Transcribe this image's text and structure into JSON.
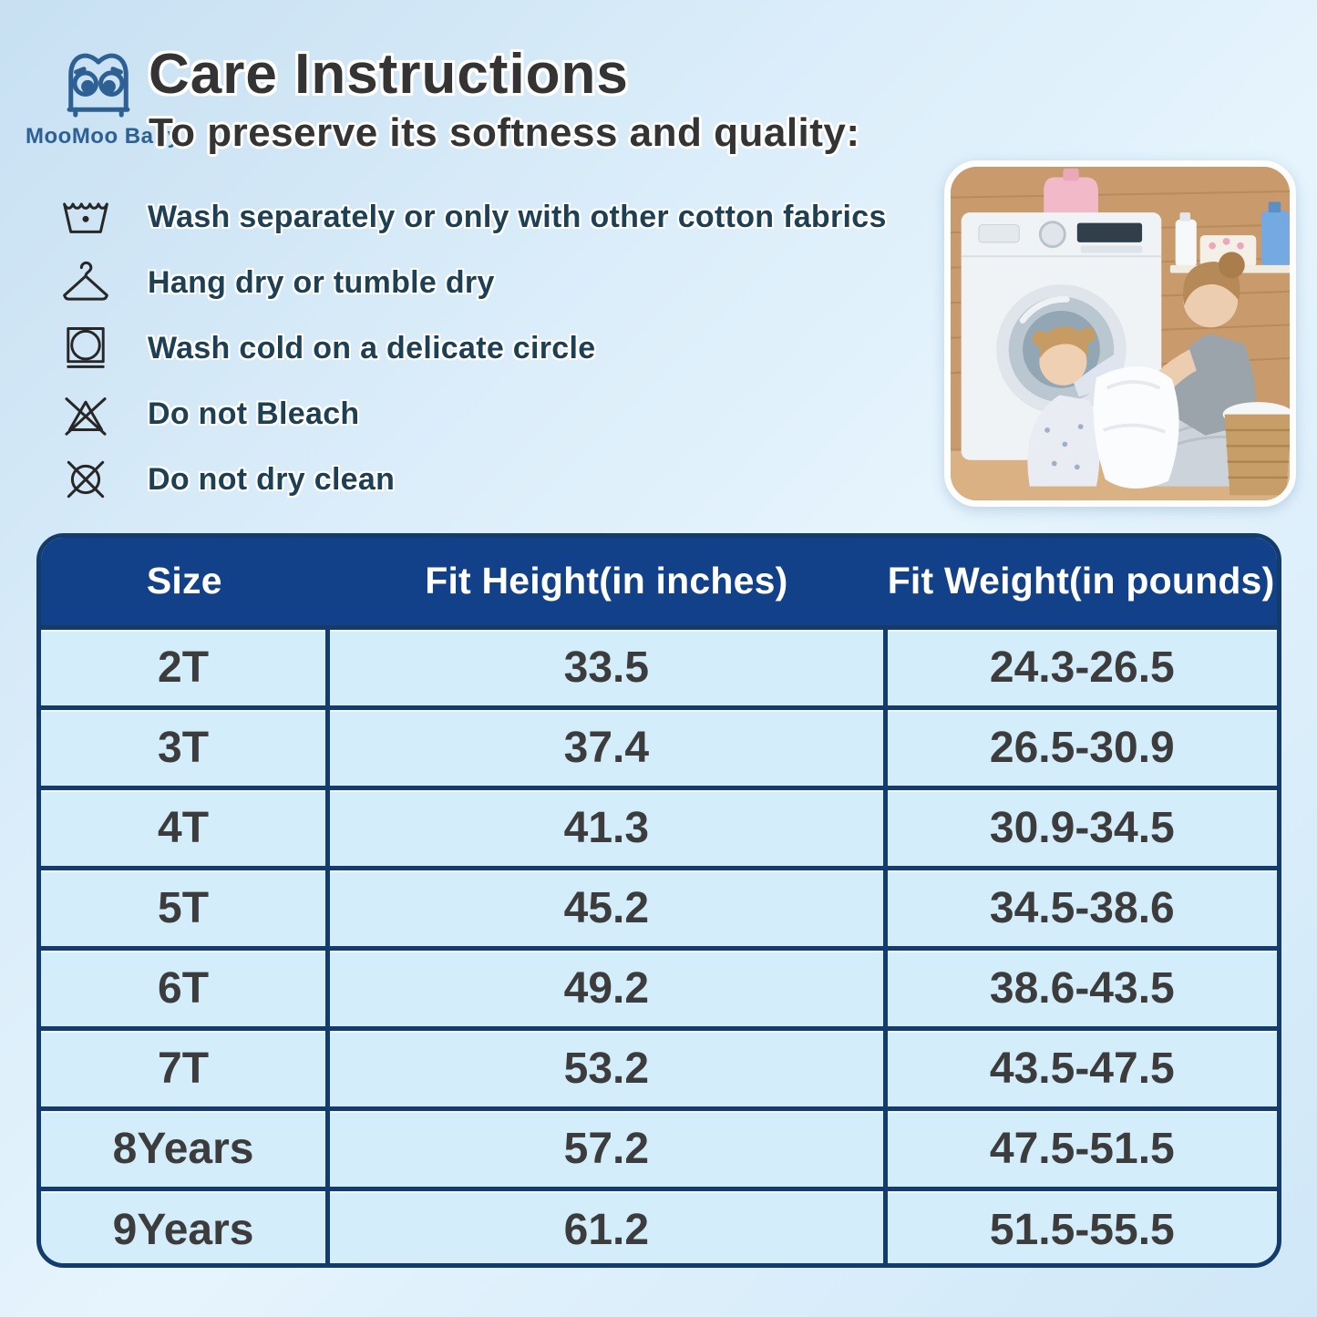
{
  "brand": {
    "name": "MooMoo Baby"
  },
  "header": {
    "title": "Care Instructions",
    "subtitle": "To preserve its softness and quality:"
  },
  "care_instructions": [
    {
      "icon": "wash-tub-icon",
      "text": "Wash separately or only with other cotton fabrics"
    },
    {
      "icon": "hanger-icon",
      "text": "Hang dry or tumble dry"
    },
    {
      "icon": "delicate-cycle-icon",
      "text": "Wash cold on a delicate circle"
    },
    {
      "icon": "do-not-bleach-icon",
      "text": "Do not Bleach"
    },
    {
      "icon": "do-not-dry-clean-icon",
      "text": "Do not dry clean"
    }
  ],
  "photo": {
    "description": "Mother and little girl taking white laundry out of a washing machine"
  },
  "size_chart": {
    "columns": [
      "Size",
      "Fit Height(in inches)",
      "Fit Weight(in pounds)"
    ],
    "rows": [
      [
        "2T",
        "33.5",
        "24.3-26.5"
      ],
      [
        "3T",
        "37.4",
        "26.5-30.9"
      ],
      [
        "4T",
        "41.3",
        "30.9-34.5"
      ],
      [
        "5T",
        "45.2",
        "34.5-38.6"
      ],
      [
        "6T",
        "49.2",
        "38.6-43.5"
      ],
      [
        "7T",
        "53.2",
        "43.5-47.5"
      ],
      [
        "8Years",
        "57.2",
        "47.5-51.5"
      ],
      [
        "9Years",
        "61.2",
        "51.5-55.5"
      ]
    ]
  },
  "colors": {
    "header_navy": "#12418a",
    "table_border": "#133c6d",
    "cell_bg": "#d4edfb",
    "cell_text": "#3c3c3c",
    "care_text": "#1d4054",
    "title_text": "#343434",
    "logo_blue": "#2e6093"
  }
}
